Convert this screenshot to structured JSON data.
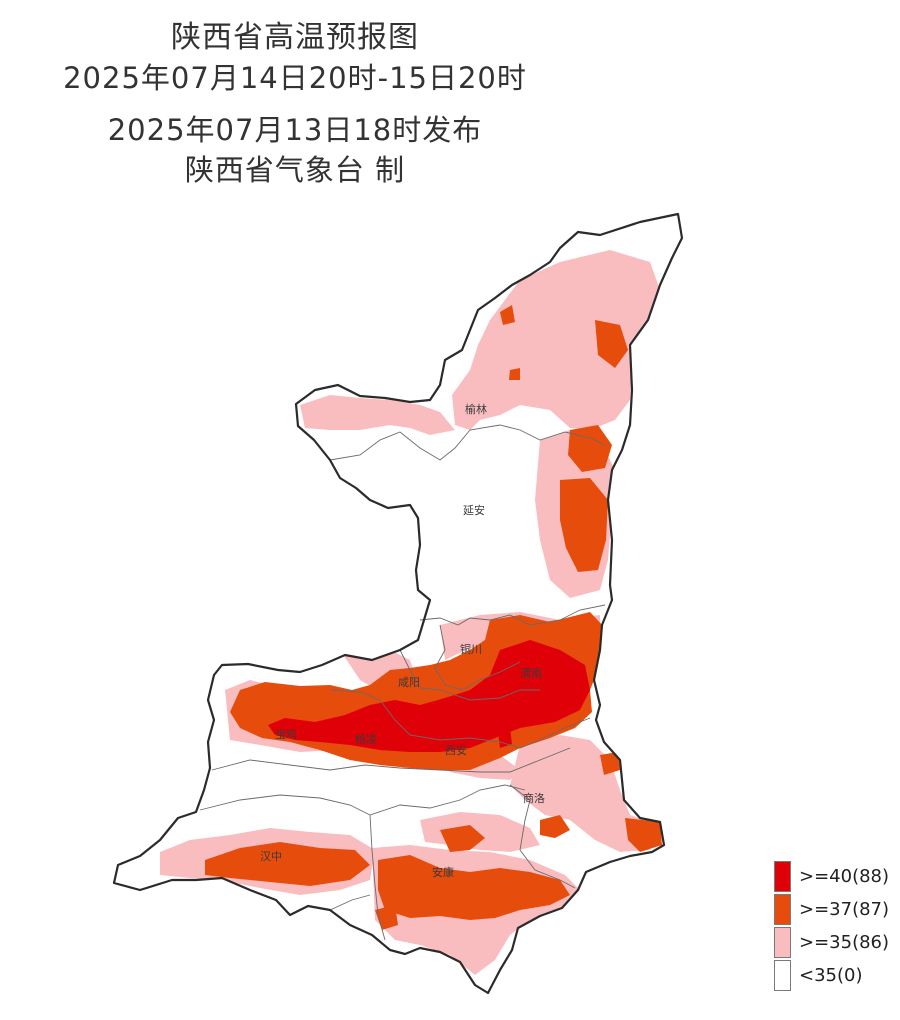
{
  "header": {
    "title": "陕西省高温预报图",
    "period": "2025年07月14日20时-15日20时",
    "issued": "2025年07月13日18时发布",
    "producer": "陕西省气象台 制"
  },
  "cities": [
    {
      "name": "榆林"
    },
    {
      "name": "延安"
    },
    {
      "name": "铜川"
    },
    {
      "name": "咸阳"
    },
    {
      "name": "渭南"
    },
    {
      "name": "宝鸡"
    },
    {
      "name": "杨凌"
    },
    {
      "name": "西安"
    },
    {
      "name": "商洛"
    },
    {
      "name": "汉中"
    },
    {
      "name": "安康"
    }
  ],
  "legend": [
    {
      "label": ">=40(88)",
      "color": "#e00008"
    },
    {
      "label": ">=37(87)",
      "color": "#e64c0c"
    },
    {
      "label": ">=35(86)",
      "color": "#f9bdc0"
    },
    {
      "label": "<35(0)",
      "color": "#ffffff"
    }
  ]
}
